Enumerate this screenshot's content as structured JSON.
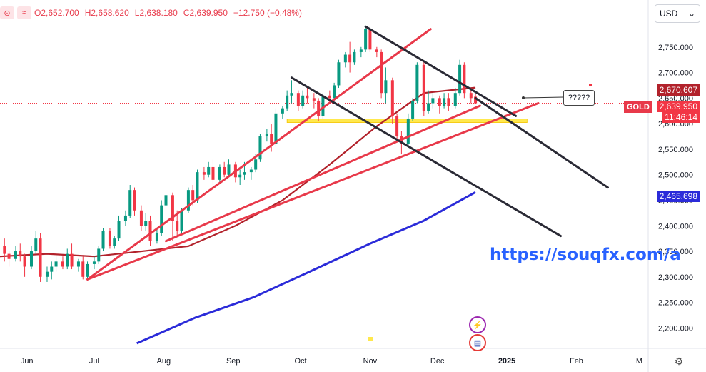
{
  "header": {
    "open": "O2,652.700",
    "high": "H2,658.620",
    "low": "L2,638.180",
    "close": "C2,639.950",
    "change": "−12.750 (−0.48%)"
  },
  "currency": {
    "selected": "USD",
    "icon": "chevron-down-icon"
  },
  "symbol": "GOLD",
  "price_labels": {
    "ma_short": "2,670.607",
    "last": "2,639.950",
    "countdown": "11:46:14",
    "ma_long": "2,465.698",
    "note": "?????"
  },
  "watermark": "https://souqfx.com/a",
  "colors": {
    "up": "#089981",
    "down": "#f23645",
    "ma_short": "#b2222b",
    "ma_long": "#2b2bd9",
    "trend_red": "#e8394a",
    "channel": "#2a2a35",
    "support": "#ffe84d"
  },
  "chart_data": {
    "type": "candlestick",
    "symbol": "GOLD",
    "currency": "USD",
    "x_ticks": [
      "Jun",
      "Jul",
      "Aug",
      "Sep",
      "Oct",
      "Nov",
      "Dec",
      "2025",
      "Feb",
      "M"
    ],
    "y_ticks": [
      "2,750.000",
      "2,700.000",
      "2,650.000",
      "2,600.000",
      "2,550.000",
      "2,500.000",
      "2,450.000",
      "2,400.000",
      "2,350.000",
      "2,300.000",
      "2,250.000",
      "2,200.000"
    ],
    "ylim": [
      2160,
      2800
    ],
    "x_range": [
      "2024-05-20",
      "2025-03-05"
    ],
    "candles": [
      {
        "d": "2024-05-22",
        "o": 2360,
        "h": 2375,
        "l": 2330,
        "c": 2345
      },
      {
        "d": "2024-05-24",
        "o": 2345,
        "h": 2350,
        "l": 2320,
        "c": 2335
      },
      {
        "d": "2024-05-27",
        "o": 2335,
        "h": 2360,
        "l": 2330,
        "c": 2350
      },
      {
        "d": "2024-05-29",
        "o": 2350,
        "h": 2365,
        "l": 2330,
        "c": 2340
      },
      {
        "d": "2024-05-31",
        "o": 2340,
        "h": 2345,
        "l": 2300,
        "c": 2320
      },
      {
        "d": "2024-06-03",
        "o": 2320,
        "h": 2360,
        "l": 2315,
        "c": 2350
      },
      {
        "d": "2024-06-05",
        "o": 2350,
        "h": 2390,
        "l": 2345,
        "c": 2375
      },
      {
        "d": "2024-06-07",
        "o": 2375,
        "h": 2385,
        "l": 2290,
        "c": 2300
      },
      {
        "d": "2024-06-10",
        "o": 2300,
        "h": 2320,
        "l": 2290,
        "c": 2310
      },
      {
        "d": "2024-06-12",
        "o": 2310,
        "h": 2330,
        "l": 2295,
        "c": 2320
      },
      {
        "d": "2024-06-14",
        "o": 2320,
        "h": 2340,
        "l": 2310,
        "c": 2330
      },
      {
        "d": "2024-06-17",
        "o": 2330,
        "h": 2340,
        "l": 2315,
        "c": 2320
      },
      {
        "d": "2024-06-19",
        "o": 2320,
        "h": 2355,
        "l": 2315,
        "c": 2345
      },
      {
        "d": "2024-06-21",
        "o": 2345,
        "h": 2365,
        "l": 2315,
        "c": 2320
      },
      {
        "d": "2024-06-24",
        "o": 2320,
        "h": 2335,
        "l": 2310,
        "c": 2330
      },
      {
        "d": "2024-06-26",
        "o": 2330,
        "h": 2340,
        "l": 2295,
        "c": 2300
      },
      {
        "d": "2024-06-28",
        "o": 2300,
        "h": 2330,
        "l": 2295,
        "c": 2325
      },
      {
        "d": "2024-07-01",
        "o": 2325,
        "h": 2340,
        "l": 2315,
        "c": 2330
      },
      {
        "d": "2024-07-03",
        "o": 2330,
        "h": 2360,
        "l": 2325,
        "c": 2355
      },
      {
        "d": "2024-07-05",
        "o": 2355,
        "h": 2395,
        "l": 2350,
        "c": 2390
      },
      {
        "d": "2024-07-08",
        "o": 2390,
        "h": 2395,
        "l": 2355,
        "c": 2360
      },
      {
        "d": "2024-07-10",
        "o": 2360,
        "h": 2380,
        "l": 2355,
        "c": 2375
      },
      {
        "d": "2024-07-12",
        "o": 2375,
        "h": 2420,
        "l": 2370,
        "c": 2410
      },
      {
        "d": "2024-07-15",
        "o": 2410,
        "h": 2430,
        "l": 2400,
        "c": 2420
      },
      {
        "d": "2024-07-17",
        "o": 2420,
        "h": 2480,
        "l": 2415,
        "c": 2470
      },
      {
        "d": "2024-07-19",
        "o": 2470,
        "h": 2475,
        "l": 2420,
        "c": 2430
      },
      {
        "d": "2024-07-22",
        "o": 2430,
        "h": 2440,
        "l": 2390,
        "c": 2400
      },
      {
        "d": "2024-07-24",
        "o": 2400,
        "h": 2425,
        "l": 2390,
        "c": 2410
      },
      {
        "d": "2024-07-26",
        "o": 2410,
        "h": 2420,
        "l": 2360,
        "c": 2370
      },
      {
        "d": "2024-07-29",
        "o": 2370,
        "h": 2395,
        "l": 2365,
        "c": 2385
      },
      {
        "d": "2024-07-31",
        "o": 2385,
        "h": 2450,
        "l": 2380,
        "c": 2440
      },
      {
        "d": "2024-08-02",
        "o": 2440,
        "h": 2475,
        "l": 2435,
        "c": 2460
      },
      {
        "d": "2024-08-05",
        "o": 2460,
        "h": 2465,
        "l": 2370,
        "c": 2410
      },
      {
        "d": "2024-08-07",
        "o": 2410,
        "h": 2430,
        "l": 2380,
        "c": 2390
      },
      {
        "d": "2024-08-09",
        "o": 2390,
        "h": 2435,
        "l": 2385,
        "c": 2430
      },
      {
        "d": "2024-08-12",
        "o": 2430,
        "h": 2475,
        "l": 2425,
        "c": 2470
      },
      {
        "d": "2024-08-14",
        "o": 2470,
        "h": 2480,
        "l": 2440,
        "c": 2450
      },
      {
        "d": "2024-08-16",
        "o": 2450,
        "h": 2510,
        "l": 2445,
        "c": 2505
      },
      {
        "d": "2024-08-19",
        "o": 2505,
        "h": 2515,
        "l": 2490,
        "c": 2500
      },
      {
        "d": "2024-08-21",
        "o": 2500,
        "h": 2525,
        "l": 2495,
        "c": 2515
      },
      {
        "d": "2024-08-23",
        "o": 2515,
        "h": 2530,
        "l": 2480,
        "c": 2490
      },
      {
        "d": "2024-08-26",
        "o": 2490,
        "h": 2520,
        "l": 2485,
        "c": 2515
      },
      {
        "d": "2024-08-28",
        "o": 2515,
        "h": 2525,
        "l": 2495,
        "c": 2500
      },
      {
        "d": "2024-08-30",
        "o": 2500,
        "h": 2530,
        "l": 2495,
        "c": 2520
      },
      {
        "d": "2024-09-02",
        "o": 2520,
        "h": 2525,
        "l": 2485,
        "c": 2495
      },
      {
        "d": "2024-09-04",
        "o": 2495,
        "h": 2510,
        "l": 2480,
        "c": 2500
      },
      {
        "d": "2024-09-06",
        "o": 2500,
        "h": 2525,
        "l": 2490,
        "c": 2505
      },
      {
        "d": "2024-09-09",
        "o": 2505,
        "h": 2515,
        "l": 2490,
        "c": 2510
      },
      {
        "d": "2024-09-11",
        "o": 2510,
        "h": 2540,
        "l": 2505,
        "c": 2530
      },
      {
        "d": "2024-09-13",
        "o": 2530,
        "h": 2580,
        "l": 2525,
        "c": 2575
      },
      {
        "d": "2024-09-16",
        "o": 2575,
        "h": 2590,
        "l": 2565,
        "c": 2580
      },
      {
        "d": "2024-09-18",
        "o": 2580,
        "h": 2600,
        "l": 2545,
        "c": 2560
      },
      {
        "d": "2024-09-20",
        "o": 2560,
        "h": 2630,
        "l": 2555,
        "c": 2620
      },
      {
        "d": "2024-09-23",
        "o": 2620,
        "h": 2635,
        "l": 2610,
        "c": 2630
      },
      {
        "d": "2024-09-25",
        "o": 2630,
        "h": 2665,
        "l": 2625,
        "c": 2655
      },
      {
        "d": "2024-09-27",
        "o": 2655,
        "h": 2685,
        "l": 2640,
        "c": 2660
      },
      {
        "d": "2024-09-30",
        "o": 2660,
        "h": 2665,
        "l": 2625,
        "c": 2635
      },
      {
        "d": "2024-10-02",
        "o": 2635,
        "h": 2665,
        "l": 2630,
        "c": 2655
      },
      {
        "d": "2024-10-04",
        "o": 2655,
        "h": 2670,
        "l": 2640,
        "c": 2650
      },
      {
        "d": "2024-10-07",
        "o": 2650,
        "h": 2660,
        "l": 2630,
        "c": 2645
      },
      {
        "d": "2024-10-09",
        "o": 2645,
        "h": 2650,
        "l": 2605,
        "c": 2615
      },
      {
        "d": "2024-10-11",
        "o": 2615,
        "h": 2660,
        "l": 2610,
        "c": 2655
      },
      {
        "d": "2024-10-14",
        "o": 2655,
        "h": 2665,
        "l": 2640,
        "c": 2650
      },
      {
        "d": "2024-10-16",
        "o": 2650,
        "h": 2680,
        "l": 2645,
        "c": 2675
      },
      {
        "d": "2024-10-18",
        "o": 2675,
        "h": 2725,
        "l": 2670,
        "c": 2720
      },
      {
        "d": "2024-10-21",
        "o": 2720,
        "h": 2740,
        "l": 2710,
        "c": 2735
      },
      {
        "d": "2024-10-23",
        "o": 2735,
        "h": 2760,
        "l": 2700,
        "c": 2720
      },
      {
        "d": "2024-10-25",
        "o": 2720,
        "h": 2745,
        "l": 2715,
        "c": 2740
      },
      {
        "d": "2024-10-28",
        "o": 2740,
        "h": 2750,
        "l": 2730,
        "c": 2745
      },
      {
        "d": "2024-10-30",
        "o": 2745,
        "h": 2790,
        "l": 2740,
        "c": 2785
      },
      {
        "d": "2024-11-01",
        "o": 2785,
        "h": 2790,
        "l": 2740,
        "c": 2745
      },
      {
        "d": "2024-11-04",
        "o": 2745,
        "h": 2750,
        "l": 2730,
        "c": 2740
      },
      {
        "d": "2024-11-06",
        "o": 2740,
        "h": 2745,
        "l": 2650,
        "c": 2660
      },
      {
        "d": "2024-11-08",
        "o": 2660,
        "h": 2710,
        "l": 2640,
        "c": 2685
      },
      {
        "d": "2024-11-11",
        "o": 2685,
        "h": 2690,
        "l": 2600,
        "c": 2615
      },
      {
        "d": "2024-11-13",
        "o": 2615,
        "h": 2620,
        "l": 2570,
        "c": 2575
      },
      {
        "d": "2024-11-15",
        "o": 2575,
        "h": 2585,
        "l": 2540,
        "c": 2560
      },
      {
        "d": "2024-11-18",
        "o": 2560,
        "h": 2620,
        "l": 2555,
        "c": 2610
      },
      {
        "d": "2024-11-20",
        "o": 2610,
        "h": 2650,
        "l": 2605,
        "c": 2645
      },
      {
        "d": "2024-11-22",
        "o": 2645,
        "h": 2720,
        "l": 2640,
        "c": 2715
      },
      {
        "d": "2024-11-25",
        "o": 2715,
        "h": 2720,
        "l": 2615,
        "c": 2625
      },
      {
        "d": "2024-11-27",
        "o": 2625,
        "h": 2665,
        "l": 2620,
        "c": 2640
      },
      {
        "d": "2024-11-29",
        "o": 2640,
        "h": 2660,
        "l": 2630,
        "c": 2650
      },
      {
        "d": "2024-12-02",
        "o": 2650,
        "h": 2655,
        "l": 2620,
        "c": 2635
      },
      {
        "d": "2024-12-04",
        "o": 2635,
        "h": 2660,
        "l": 2630,
        "c": 2650
      },
      {
        "d": "2024-12-06",
        "o": 2650,
        "h": 2660,
        "l": 2625,
        "c": 2635
      },
      {
        "d": "2024-12-09",
        "o": 2635,
        "h": 2670,
        "l": 2630,
        "c": 2660
      },
      {
        "d": "2024-12-11",
        "o": 2660,
        "h": 2725,
        "l": 2655,
        "c": 2715
      },
      {
        "d": "2024-12-13",
        "o": 2715,
        "h": 2720,
        "l": 2650,
        "c": 2660
      },
      {
        "d": "2024-12-16",
        "o": 2660,
        "h": 2670,
        "l": 2640,
        "c": 2650
      },
      {
        "d": "2024-12-18",
        "o": 2652.7,
        "h": 2658.62,
        "l": 2638.18,
        "c": 2639.95
      }
    ],
    "ma_short": {
      "name": "",
      "last": 2670.607,
      "points": [
        [
          "2024-05-20",
          2340
        ],
        [
          "2024-06-10",
          2345
        ],
        [
          "2024-07-01",
          2340
        ],
        [
          "2024-07-22",
          2350
        ],
        [
          "2024-08-12",
          2360
        ],
        [
          "2024-09-02",
          2400
        ],
        [
          "2024-09-23",
          2450
        ],
        [
          "2024-10-14",
          2520
        ],
        [
          "2024-11-04",
          2595
        ],
        [
          "2024-11-25",
          2660
        ],
        [
          "2024-12-18",
          2670.607
        ]
      ]
    },
    "ma_long": {
      "name": "",
      "last": 2465.698,
      "points": [
        [
          "2024-07-20",
          2170
        ],
        [
          "2024-08-15",
          2220
        ],
        [
          "2024-09-10",
          2260
        ],
        [
          "2024-10-05",
          2310
        ],
        [
          "2024-11-01",
          2365
        ],
        [
          "2024-11-25",
          2410
        ],
        [
          "2024-12-18",
          2465.698
        ]
      ]
    },
    "lines": [
      {
        "name": "trend-red-1",
        "color": "red",
        "points": [
          [
            "2024-06-28",
            2295
          ],
          [
            "2024-11-28",
            2785
          ]
        ]
      },
      {
        "name": "trend-red-2",
        "color": "red",
        "points": [
          [
            "2024-08-02",
            2370
          ],
          [
            "2024-12-20",
            2635
          ]
        ]
      },
      {
        "name": "trend-red-3",
        "color": "red",
        "points": [
          [
            "2024-06-28",
            2295
          ],
          [
            "2025-01-15",
            2640
          ]
        ]
      },
      {
        "name": "channel-upper",
        "color": "black",
        "points": [
          [
            "2024-10-30",
            2790
          ],
          [
            "2025-01-05",
            2615
          ]
        ]
      },
      {
        "name": "channel-lower",
        "color": "black",
        "points": [
          [
            "2024-09-27",
            2690
          ],
          [
            "2025-01-25",
            2380
          ]
        ]
      },
      {
        "name": "channel-upper-ext",
        "color": "black",
        "points": [
          [
            "2024-12-18",
            2650
          ],
          [
            "2025-02-15",
            2475
          ]
        ]
      }
    ],
    "support_band": {
      "from": "2024-09-25",
      "to": "2025-01-10",
      "value": 2605
    },
    "last_price": 2639.95
  }
}
